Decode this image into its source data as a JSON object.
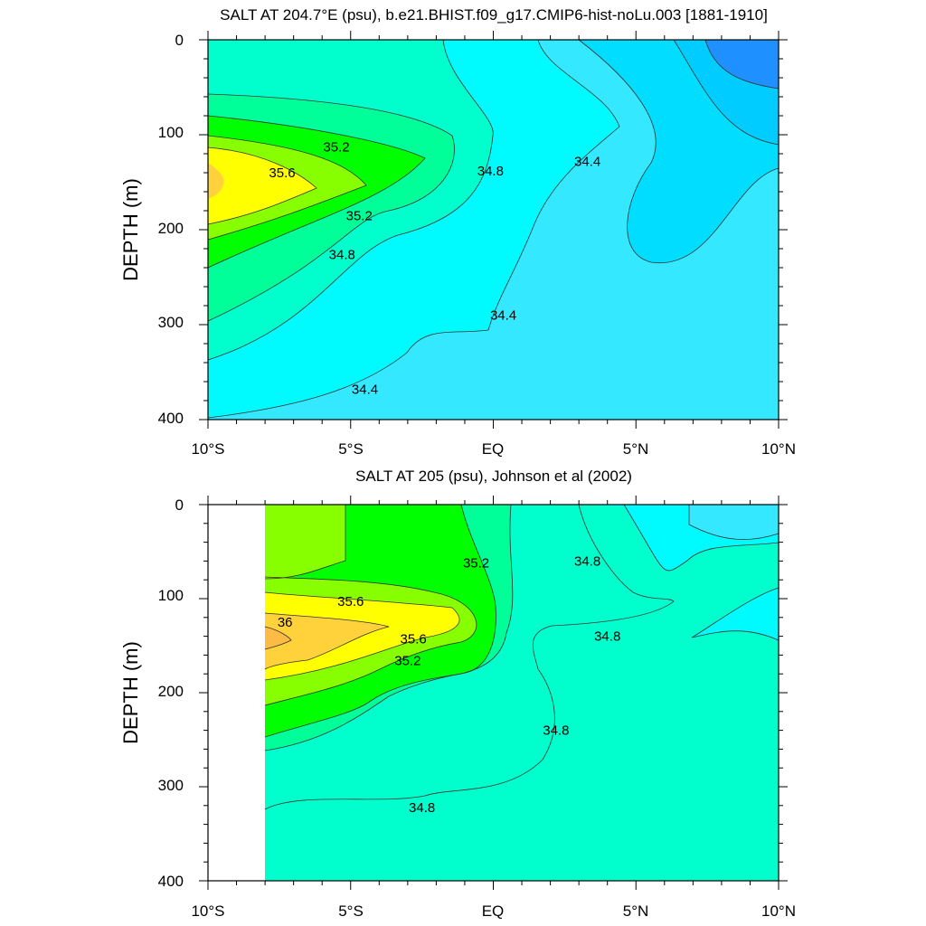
{
  "chart_data": [
    {
      "type": "contour",
      "title": "SALT AT 204.7°E (psu), b.e21.BHIST.f09_g17.CMIP6-hist-noLu.003 [1881-1910]",
      "ylabel": "DEPTH (m)",
      "xlabel": "",
      "x_range": [
        -10,
        10
      ],
      "y_range": [
        0,
        400
      ],
      "y_inverted": true,
      "x_ticks": [
        {
          "value": -10,
          "label": "10°S"
        },
        {
          "value": -5,
          "label": "5°S"
        },
        {
          "value": 0,
          "label": "EQ"
        },
        {
          "value": 5,
          "label": "5°N"
        },
        {
          "value": 10,
          "label": "10°N"
        }
      ],
      "y_ticks": [
        {
          "value": 0,
          "label": "0"
        },
        {
          "value": 100,
          "label": "100"
        },
        {
          "value": 200,
          "label": "200"
        },
        {
          "value": 300,
          "label": "300"
        },
        {
          "value": 400,
          "label": "400"
        }
      ],
      "contour_labels": [
        {
          "text": "35.2",
          "x": -5.5,
          "y": 113
        },
        {
          "text": "35.6",
          "x": -7.4,
          "y": 140
        },
        {
          "text": "34.8",
          "x": -0.1,
          "y": 138
        },
        {
          "text": "34.4",
          "x": 3.3,
          "y": 128
        },
        {
          "text": "35.2",
          "x": -4.7,
          "y": 185
        },
        {
          "text": "34.8",
          "x": -5.3,
          "y": 226
        },
        {
          "text": "34.4",
          "x": 0.35,
          "y": 290
        },
        {
          "text": "34.4",
          "x": -4.5,
          "y": 368
        }
      ]
    },
    {
      "type": "contour",
      "title": "SALT AT 205 (psu), Johnson et al (2002)",
      "ylabel": "DEPTH (m)",
      "xlabel": "",
      "x_range": [
        -10,
        10
      ],
      "y_range": [
        0,
        400
      ],
      "y_inverted": true,
      "x_ticks": [
        {
          "value": -10,
          "label": "10°S"
        },
        {
          "value": -5,
          "label": "5°S"
        },
        {
          "value": 0,
          "label": "EQ"
        },
        {
          "value": 5,
          "label": "5°N"
        },
        {
          "value": 10,
          "label": "10°N"
        }
      ],
      "y_ticks": [
        {
          "value": 0,
          "label": "0"
        },
        {
          "value": 100,
          "label": "100"
        },
        {
          "value": 200,
          "label": "200"
        },
        {
          "value": 300,
          "label": "300"
        },
        {
          "value": 400,
          "label": "400"
        }
      ],
      "contour_labels": [
        {
          "text": "35.2",
          "x": -0.6,
          "y": 62
        },
        {
          "text": "34.8",
          "x": 3.3,
          "y": 60
        },
        {
          "text": "35.6",
          "x": -5.0,
          "y": 103
        },
        {
          "text": "36",
          "x": -7.3,
          "y": 125
        },
        {
          "text": "35.6",
          "x": -2.8,
          "y": 143
        },
        {
          "text": "34.8",
          "x": 4.0,
          "y": 140
        },
        {
          "text": "35.2",
          "x": -3.0,
          "y": 166
        },
        {
          "text": "34.8",
          "x": 2.2,
          "y": 240
        },
        {
          "text": "34.8",
          "x": -2.5,
          "y": 322
        }
      ]
    }
  ]
}
